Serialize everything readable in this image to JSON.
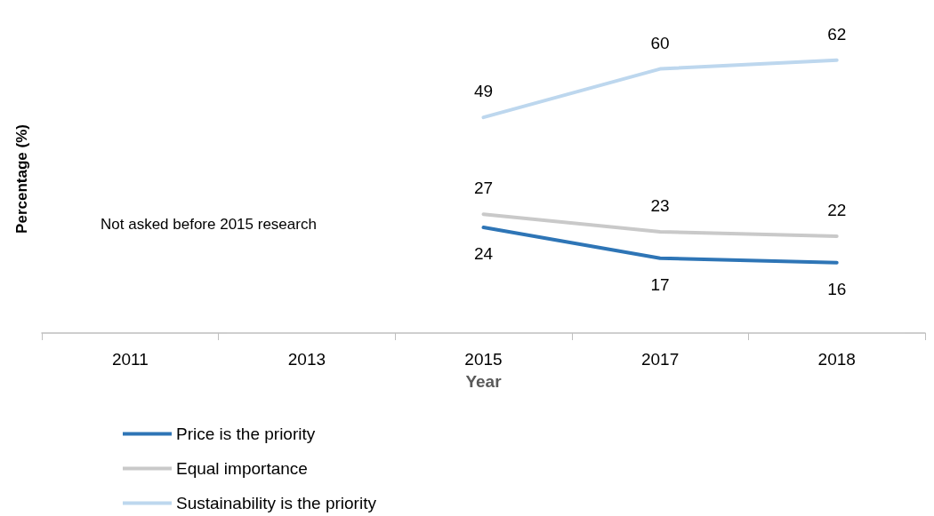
{
  "chart_data": {
    "type": "line",
    "xlabel": "Year",
    "ylabel": "Percentage (%)",
    "categories": [
      "2011",
      "2013",
      "2015",
      "2017",
      "2018"
    ],
    "series": [
      {
        "name": "Price is the priority",
        "color": "#2e75b6",
        "values": [
          null,
          null,
          24,
          17,
          16
        ]
      },
      {
        "name": "Equal importance",
        "color": "#c9c9c9",
        "values": [
          null,
          null,
          27,
          23,
          22
        ]
      },
      {
        "name": "Sustainability is the priority",
        "color": "#bdd7ee",
        "values": [
          null,
          null,
          49,
          60,
          62
        ]
      }
    ],
    "annotations": [
      "Not asked before 2015 research"
    ],
    "data_labels": true,
    "legend": "bottom left",
    "grid": false,
    "marker": "none",
    "line_style": "solid"
  }
}
